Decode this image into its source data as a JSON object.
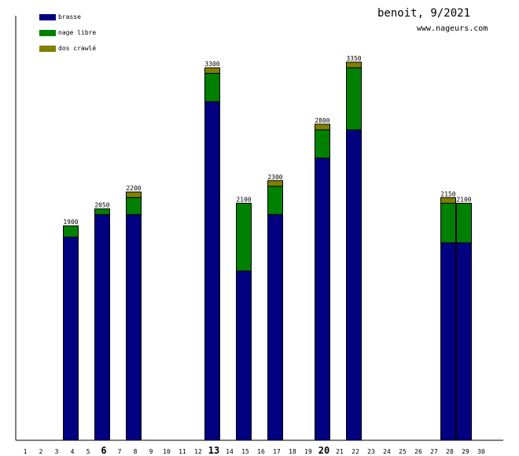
{
  "chart_data": {
    "type": "bar",
    "stacked": true,
    "title": "benoit, 9/2021",
    "subtitle": "www.nageurs.com",
    "xlabel": "",
    "ylabel": "",
    "ylim": [
      0,
      3350
    ],
    "legend_position": "top-left",
    "categories": [
      "1",
      "2",
      "3",
      "4",
      "5",
      "6",
      "7",
      "8",
      "9",
      "10",
      "11",
      "12",
      "13",
      "14",
      "15",
      "16",
      "17",
      "18",
      "19",
      "20",
      "21",
      "22",
      "23",
      "24",
      "25",
      "26",
      "27",
      "28",
      "29",
      "30"
    ],
    "bold_categories": [
      "6",
      "13",
      "20"
    ],
    "series": [
      {
        "name": "brasse",
        "color": "#000080",
        "values": [
          0,
          0,
          0,
          1800,
          0,
          2000,
          0,
          2000,
          0,
          0,
          0,
          0,
          3000,
          0,
          1500,
          0,
          2000,
          0,
          0,
          2500,
          0,
          2750,
          0,
          0,
          0,
          0,
          0,
          1750,
          1750,
          0
        ]
      },
      {
        "name": "nage libre",
        "color": "#008000",
        "values": [
          0,
          0,
          0,
          100,
          0,
          50,
          0,
          150,
          0,
          0,
          0,
          0,
          250,
          0,
          600,
          0,
          250,
          0,
          0,
          250,
          0,
          550,
          0,
          0,
          0,
          0,
          0,
          350,
          350,
          0
        ]
      },
      {
        "name": "dos crawlé",
        "color": "#808000",
        "values": [
          0,
          0,
          0,
          0,
          0,
          0,
          0,
          50,
          0,
          0,
          0,
          0,
          50,
          0,
          0,
          0,
          50,
          0,
          0,
          50,
          0,
          50,
          0,
          0,
          0,
          0,
          0,
          50,
          0,
          0
        ]
      }
    ],
    "totals": [
      0,
      0,
      0,
      1900,
      0,
      2050,
      0,
      2200,
      0,
      0,
      0,
      0,
      3300,
      0,
      2100,
      0,
      2300,
      0,
      0,
      2800,
      0,
      3350,
      0,
      0,
      0,
      0,
      0,
      2150,
      2100,
      0
    ]
  }
}
